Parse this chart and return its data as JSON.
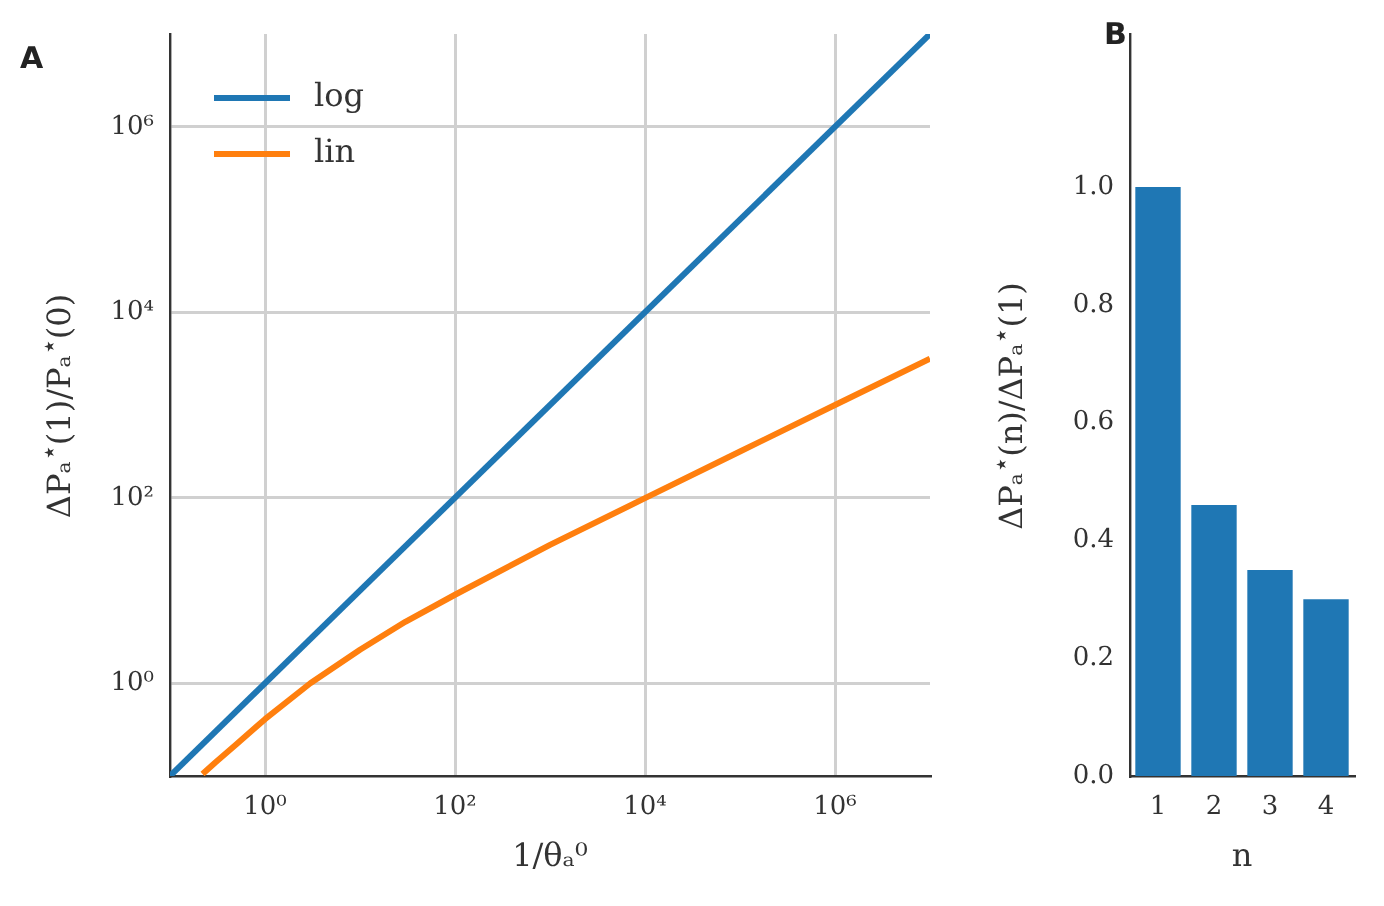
{
  "chart_data": [
    {
      "type": "line",
      "title": "A",
      "xlabel": "1/θₐ⁰",
      "ylabel": "ΔPₐ$^{⋆}$(1)/Pₐ$^{⋆}$(0)",
      "log": "xy",
      "grid": true,
      "legend": "top left",
      "marker": "none",
      "line_style": "solid",
      "xlim": [
        0.1,
        10000000
      ],
      "ylim": [
        0.1,
        10000000
      ],
      "xticks": [
        {
          "value": 1,
          "label": "10⁰"
        },
        {
          "value": 100,
          "label": "10²"
        },
        {
          "value": 10000,
          "label": "10⁴"
        },
        {
          "value": 1000000,
          "label": "10⁶"
        }
      ],
      "yticks": [
        {
          "value": 1,
          "label": "10⁰"
        },
        {
          "value": 100,
          "label": "10²"
        },
        {
          "value": 10000,
          "label": "10⁴"
        },
        {
          "value": 1000000,
          "label": "10⁶"
        }
      ],
      "series": [
        {
          "name": "log",
          "color": "#1f77b4",
          "x": [
            0.1,
            10000000
          ],
          "values": [
            0.1,
            10000000
          ]
        },
        {
          "name": "lin",
          "color": "#ff7f0e",
          "x": [
            0.22,
            0.3,
            0.5,
            1,
            3,
            10,
            30,
            100,
            1000,
            10000,
            100000,
            1000000,
            10000000
          ],
          "values": [
            0.105,
            0.14,
            0.22,
            0.41,
            1,
            2.3,
            4.6,
            9,
            31,
            99,
            315,
            1000,
            3160
          ]
        }
      ]
    },
    {
      "type": "bar",
      "title": "B",
      "xlabel": "n",
      "ylabel": "ΔPₐ$^{⋆}$(n)/ΔPₐ$^{⋆}$(1)",
      "categories": [
        "1",
        "2",
        "3",
        "4"
      ],
      "values": [
        1.0,
        0.46,
        0.35,
        0.3
      ],
      "color": "#1f77b4",
      "ylim": [
        0,
        1.26
      ],
      "yticks": [
        {
          "value": 0,
          "label": "0.0"
        },
        {
          "value": 0.2,
          "label": "0.2"
        },
        {
          "value": 0.4,
          "label": "0.4"
        },
        {
          "value": 0.6,
          "label": "0.6"
        },
        {
          "value": 0.8,
          "label": "0.8"
        },
        {
          "value": 1,
          "label": "1.0"
        }
      ]
    }
  ]
}
